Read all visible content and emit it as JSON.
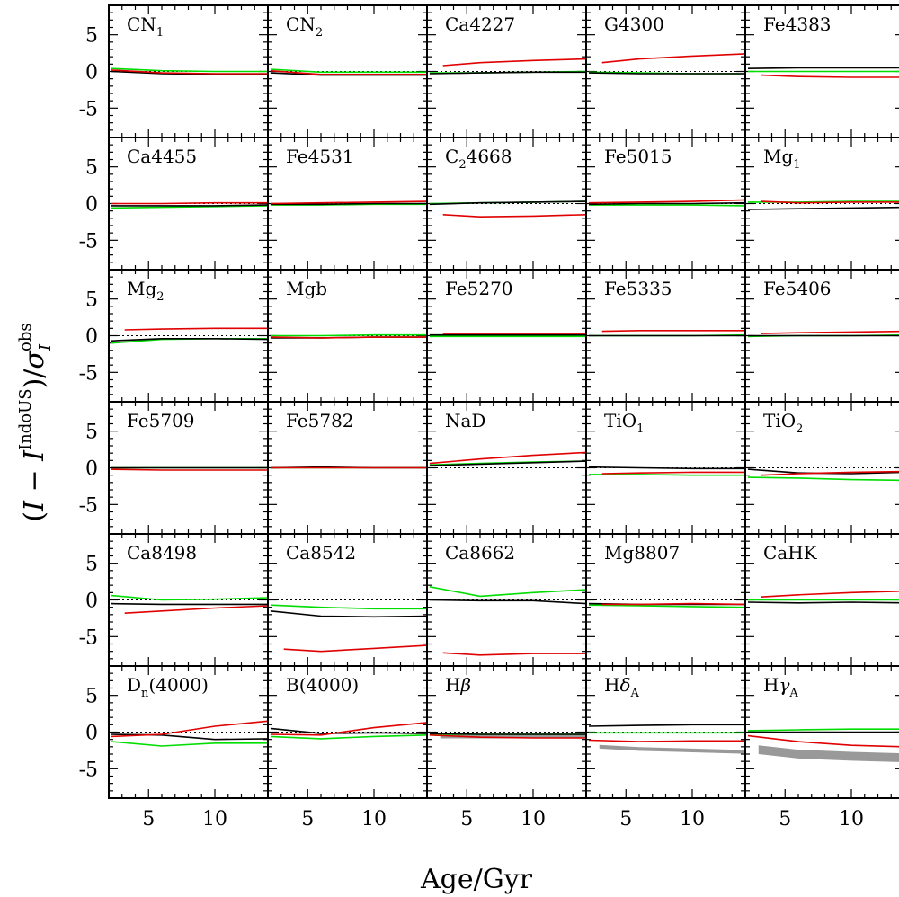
{
  "chart_data": {
    "type": "line",
    "grid": {
      "rows": 6,
      "cols": 5
    },
    "xlabel": "Age/Gyr",
    "ylabel": "(I − I^IndoUS)/σ_I^obs",
    "xlim": [
      2,
      14
    ],
    "ylim": [
      -9,
      9
    ],
    "xticks": [
      5,
      10
    ],
    "yticks": [
      5,
      0,
      -5
    ],
    "series_colors": {
      "black": "#000000",
      "red": "#e00000",
      "green": "#00dd00",
      "gray": "#999999"
    },
    "panels": [
      {
        "title": "CN",
        "sub": "1",
        "black": [
          0.0,
          -0.3,
          -0.4,
          -0.4
        ],
        "red": [
          0.2,
          -0.2,
          -0.3,
          -0.3
        ],
        "green": [
          0.4,
          0.1,
          0.0,
          0.0
        ],
        "red_start": 2
      },
      {
        "title": "CN",
        "sub": "2",
        "black": [
          -0.2,
          -0.5,
          -0.5,
          -0.5
        ],
        "red": [
          0.1,
          -0.4,
          -0.4,
          -0.4
        ],
        "green": [
          0.3,
          -0.1,
          -0.1,
          -0.1
        ],
        "red_start": 2
      },
      {
        "title": "Ca4227",
        "sub": "",
        "black": [
          -0.3,
          -0.2,
          -0.1,
          -0.1
        ],
        "red": [
          0.8,
          1.2,
          1.5,
          1.7
        ],
        "green": [
          -0.2,
          -0.2,
          -0.1,
          0.0
        ],
        "red_start": 3
      },
      {
        "title": "G4300",
        "sub": "",
        "black": [
          -0.2,
          -0.3,
          -0.3,
          -0.3
        ],
        "red": [
          1.2,
          1.7,
          2.1,
          2.4
        ],
        "green": [
          -0.1,
          -0.2,
          -0.3,
          -0.3
        ],
        "red_start": 3
      },
      {
        "title": "Fe4383",
        "sub": "",
        "black": [
          0.4,
          0.5,
          0.5,
          0.5
        ],
        "red": [
          -0.5,
          -0.7,
          -0.8,
          -0.8
        ],
        "green": [
          0.0,
          0.0,
          0.0,
          0.0
        ],
        "red_start": 3
      },
      {
        "title": "Ca4455",
        "sub": "",
        "black": [
          -0.3,
          -0.3,
          -0.3,
          -0.2
        ],
        "red": [
          0.0,
          0.0,
          0.1,
          0.1
        ],
        "green": [
          -0.6,
          -0.5,
          -0.4,
          -0.3
        ],
        "red_start": 2
      },
      {
        "title": "Fe4531",
        "sub": "",
        "black": [
          -0.1,
          -0.1,
          0.0,
          0.0
        ],
        "red": [
          0.0,
          0.1,
          0.2,
          0.3
        ],
        "green": [
          -0.2,
          -0.2,
          -0.1,
          -0.1
        ],
        "red_start": 2
      },
      {
        "title": "C",
        "sub": "2",
        "after": "4668",
        "black": [
          -0.1,
          0.1,
          0.2,
          0.3
        ],
        "red": [
          -1.5,
          -1.8,
          -1.7,
          -1.5
        ],
        "green": [
          0.0,
          0.1,
          0.2,
          0.3
        ],
        "red_start": 3
      },
      {
        "title": "Fe5015",
        "sub": "",
        "black": [
          -0.1,
          0.0,
          0.0,
          0.1
        ],
        "red": [
          0.1,
          0.2,
          0.3,
          0.5
        ],
        "green": [
          -0.2,
          -0.2,
          -0.2,
          -0.3
        ],
        "red_start": 2
      },
      {
        "title": "Mg",
        "sub": "1",
        "black": [
          -0.8,
          -0.7,
          -0.6,
          -0.5
        ],
        "red": [
          0.3,
          0.1,
          0.2,
          0.2
        ],
        "green": [
          0.2,
          0.2,
          0.3,
          0.3
        ],
        "red_start": 3
      },
      {
        "title": "Mg",
        "sub": "2",
        "black": [
          -0.7,
          -0.4,
          -0.4,
          -0.5
        ],
        "red": [
          0.8,
          0.9,
          1.0,
          1.0
        ],
        "green": [
          -1.0,
          -0.5,
          -0.4,
          -0.4
        ],
        "red_start": 3
      },
      {
        "title": "Mgb",
        "sub": "",
        "black": [
          -0.3,
          -0.3,
          -0.2,
          -0.2
        ],
        "red": [
          -0.2,
          -0.3,
          -0.2,
          -0.2
        ],
        "green": [
          0.0,
          0.0,
          0.1,
          0.1
        ],
        "red_start": 2
      },
      {
        "title": "Fe5270",
        "sub": "",
        "black": [
          0.1,
          0.1,
          0.1,
          0.1
        ],
        "red": [
          0.3,
          0.3,
          0.3,
          0.3
        ],
        "green": [
          -0.1,
          -0.1,
          -0.1,
          -0.1
        ],
        "red_start": 3
      },
      {
        "title": "Fe5335",
        "sub": "",
        "black": [
          0.0,
          0.0,
          0.0,
          0.0
        ],
        "red": [
          0.6,
          0.7,
          0.7,
          0.7
        ],
        "green": [
          0.0,
          0.0,
          0.0,
          0.1
        ],
        "red_start": 3
      },
      {
        "title": "Fe5406",
        "sub": "",
        "black": [
          0.0,
          0.0,
          0.0,
          0.0
        ],
        "red": [
          0.3,
          0.4,
          0.5,
          0.6
        ],
        "green": [
          -0.1,
          0.0,
          0.0,
          0.1
        ],
        "red_start": 3
      },
      {
        "title": "Fe5709",
        "sub": "",
        "black": [
          0.0,
          0.0,
          0.0,
          0.0
        ],
        "red": [
          -0.2,
          -0.3,
          -0.3,
          -0.3
        ],
        "green": [
          0.0,
          0.0,
          0.0,
          0.0
        ],
        "red_start": 2
      },
      {
        "title": "Fe5782",
        "sub": "",
        "black": [
          0.0,
          0.1,
          0.0,
          0.0
        ],
        "red": [
          0.0,
          0.0,
          0.0,
          0.0
        ],
        "green": [
          0.0,
          0.0,
          0.0,
          0.0
        ],
        "red_start": 2
      },
      {
        "title": "NaD",
        "sub": "",
        "black": [
          0.3,
          0.5,
          0.7,
          0.9
        ],
        "red": [
          0.6,
          1.2,
          1.7,
          2.1
        ],
        "green": [
          0.4,
          0.6,
          0.8,
          0.9
        ],
        "red_start": 2
      },
      {
        "title": "TiO",
        "sub": "1",
        "black": [
          0.1,
          0.0,
          -0.1,
          -0.1
        ],
        "red": [
          -0.8,
          -0.7,
          -0.6,
          -0.6
        ],
        "green": [
          -0.9,
          -0.9,
          -1.0,
          -1.0
        ],
        "red_start": 3
      },
      {
        "title": "TiO",
        "sub": "2",
        "black": [
          -0.2,
          -0.7,
          -0.8,
          -0.6
        ],
        "red": [
          -1.0,
          -0.8,
          -0.6,
          -0.5
        ],
        "green": [
          -1.3,
          -1.4,
          -1.6,
          -1.7
        ],
        "red_start": 3
      },
      {
        "title": "Ca8498",
        "sub": "",
        "black": [
          -0.5,
          -0.6,
          -0.6,
          -0.6
        ],
        "red": [
          -1.8,
          -1.5,
          -1.1,
          -0.8
        ],
        "green": [
          0.6,
          0.0,
          0.1,
          0.3
        ],
        "red_start": 3
      },
      {
        "title": "Ca8542",
        "sub": "",
        "black": [
          -1.5,
          -2.2,
          -2.3,
          -2.2
        ],
        "red": [
          -6.7,
          -7.0,
          -6.6,
          -6.2
        ],
        "green": [
          -0.7,
          -1.0,
          -1.2,
          -1.2
        ],
        "red_start": 3
      },
      {
        "title": "Ca8662",
        "sub": "",
        "black": [
          0.0,
          -0.1,
          -0.1,
          -0.5
        ],
        "red": [
          -7.2,
          -7.5,
          -7.3,
          -7.3
        ],
        "green": [
          1.8,
          0.5,
          1.0,
          1.4
        ],
        "red_start": 3
      },
      {
        "title": "Mg8807",
        "sub": "",
        "black": [
          -0.5,
          -0.6,
          -0.6,
          -0.6
        ],
        "red": [
          -0.6,
          -0.6,
          -0.5,
          -0.6
        ],
        "green": [
          -0.7,
          -0.8,
          -0.9,
          -1.0
        ],
        "red_start": 3
      },
      {
        "title": "CaHK",
        "sub": "",
        "black": [
          -0.3,
          -0.4,
          -0.3,
          -0.4
        ],
        "red": [
          0.4,
          0.7,
          1.0,
          1.2
        ],
        "green": [
          0.0,
          0.0,
          0.0,
          0.0
        ],
        "red_start": 3
      },
      {
        "title": "D",
        "sub": "n",
        "after": "(4000)",
        "black": [
          -0.3,
          -0.4,
          -1.0,
          -0.9
        ],
        "red": [
          -0.6,
          -0.3,
          0.8,
          1.5
        ],
        "green": [
          -1.3,
          -1.9,
          -1.5,
          -1.5
        ],
        "red_start": 2
      },
      {
        "title": "B(4000)",
        "sub": "",
        "black": [
          0.5,
          -0.2,
          -0.1,
          -0.2
        ],
        "red": [
          -0.3,
          -0.4,
          0.6,
          1.3
        ],
        "green": [
          -0.6,
          -0.9,
          -0.6,
          -0.4
        ],
        "red_start": 2
      },
      {
        "title": "H",
        "greek": "β",
        "sub": "",
        "black": [
          -0.2,
          -0.3,
          -0.3,
          -0.3
        ],
        "red": [
          -0.4,
          -0.7,
          -0.8,
          -0.8
        ],
        "green": [
          -0.3,
          -0.3,
          -0.3,
          -0.3
        ],
        "band": [
          -0.6,
          -0.6,
          -0.6,
          -0.6
        ],
        "band_width": 0.5,
        "red_start": 2
      },
      {
        "title": "H",
        "greek": "δ",
        "sub": "A",
        "black": [
          0.8,
          0.9,
          1.0,
          1.0
        ],
        "red": [
          -1.1,
          -1.3,
          -1.2,
          -1.2
        ],
        "green": [
          -0.1,
          -0.1,
          -0.1,
          -0.1
        ],
        "band": [
          -2.0,
          -2.3,
          -2.5,
          -2.7
        ],
        "band_width": 0.5,
        "red_start": 2
      },
      {
        "title": "H",
        "greek": "γ",
        "sub": "A",
        "black": [
          0.0,
          0.0,
          0.0,
          0.0
        ],
        "red": [
          -0.5,
          -1.3,
          -1.8,
          -2.0
        ],
        "green": [
          0.2,
          0.3,
          0.4,
          0.4
        ],
        "band": [
          -2.4,
          -3.0,
          -3.3,
          -3.5
        ],
        "band_width": 1.2,
        "red_start": 2
      }
    ]
  }
}
